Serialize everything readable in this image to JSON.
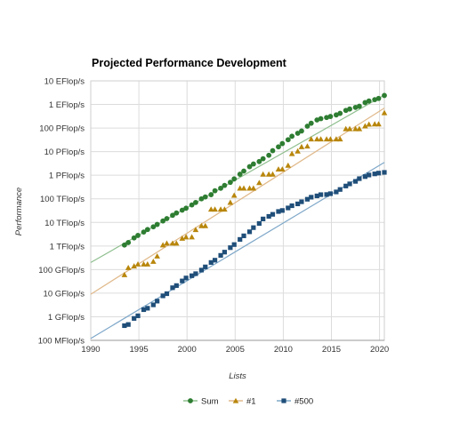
{
  "chart_data": {
    "type": "scatter",
    "title": "Projected Performance Development",
    "xlabel": "Lists",
    "ylabel": "Performance",
    "xlim": [
      1990,
      2020.5
    ],
    "log_scale_y": true,
    "ylim_label": [
      "100 MFlop/s",
      "10 EFlop/s"
    ],
    "y_ticks": [
      {
        "gflops": 0.1,
        "label": "100 MFlop/s"
      },
      {
        "gflops": 1,
        "label": "1 GFlop/s"
      },
      {
        "gflops": 10,
        "label": "10 GFlop/s"
      },
      {
        "gflops": 100,
        "label": "100 GFlop/s"
      },
      {
        "gflops": 1000,
        "label": "1 TFlop/s"
      },
      {
        "gflops": 10000,
        "label": "10 TFlop/s"
      },
      {
        "gflops": 100000,
        "label": "100 TFlop/s"
      },
      {
        "gflops": 1000000,
        "label": "1 PFlop/s"
      },
      {
        "gflops": 10000000,
        "label": "10 PFlop/s"
      },
      {
        "gflops": 100000000,
        "label": "100 PFlop/s"
      },
      {
        "gflops": 1000000000,
        "label": "1 EFlop/s"
      },
      {
        "gflops": 10000000000,
        "label": "10 EFlop/s"
      }
    ],
    "x_ticks": [
      "1990",
      "1995",
      "2000",
      "2005",
      "2010",
      "2015",
      "2020"
    ],
    "y_unit": "GFlop/s",
    "grid": true,
    "legend_position": "bottom-center",
    "series": [
      {
        "name": "Sum",
        "color": "#2e7d32",
        "marker": "circle",
        "trend_color": "#8fbf8f",
        "trend": [
          [
            1990,
            200
          ],
          [
            2020.5,
            2500000000
          ]
        ],
        "x": [
          1993.5,
          1993.9,
          1994.5,
          1994.9,
          1995.5,
          1995.9,
          1996.5,
          1996.9,
          1997.5,
          1997.9,
          1998.5,
          1998.9,
          1999.5,
          1999.9,
          2000.5,
          2000.9,
          2001.5,
          2001.9,
          2002.5,
          2002.9,
          2003.5,
          2003.9,
          2004.5,
          2004.9,
          2005.5,
          2005.9,
          2006.5,
          2006.9,
          2007.5,
          2007.9,
          2008.5,
          2008.9,
          2009.5,
          2009.9,
          2010.5,
          2010.9,
          2011.5,
          2011.9,
          2012.5,
          2012.9,
          2013.5,
          2013.9,
          2014.5,
          2014.9,
          2015.5,
          2015.9,
          2016.5,
          2016.9,
          2017.5,
          2017.9,
          2018.5,
          2018.9,
          2019.5,
          2019.9,
          2020.5
        ],
        "values": [
          1100,
          1400,
          2200,
          2800,
          3900,
          5000,
          6500,
          8200,
          11500,
          14500,
          20000,
          25000,
          33000,
          40000,
          55000,
          70000,
          100000,
          120000,
          150000,
          220000,
          280000,
          370000,
          500000,
          700000,
          1100000,
          1500000,
          2300000,
          3000000,
          3800000,
          5000000,
          7000000,
          11000000,
          16000000,
          22000000,
          32000000,
          45000000,
          60000000,
          75000000,
          120000000,
          160000000,
          220000000,
          250000000,
          280000000,
          310000000,
          360000000,
          420000000,
          560000000,
          640000000,
          750000000,
          840000000,
          1200000000,
          1400000000,
          1600000000,
          1800000000,
          2400000000
        ]
      },
      {
        "name": "#1",
        "color": "#b8860b",
        "marker": "triangle",
        "trend_color": "#e0b98a",
        "trend": [
          [
            1990,
            9
          ],
          [
            2020.5,
            700000000
          ]
        ],
        "x": [
          1993.5,
          1993.9,
          1994.5,
          1994.9,
          1995.5,
          1995.9,
          1996.5,
          1996.9,
          1997.5,
          1997.9,
          1998.5,
          1998.9,
          1999.5,
          1999.9,
          2000.5,
          2000.9,
          2001.5,
          2001.9,
          2002.5,
          2002.9,
          2003.5,
          2003.9,
          2004.5,
          2004.9,
          2005.5,
          2005.9,
          2006.5,
          2006.9,
          2007.5,
          2007.9,
          2008.5,
          2008.9,
          2009.5,
          2009.9,
          2010.5,
          2010.9,
          2011.5,
          2011.9,
          2012.5,
          2012.9,
          2013.5,
          2013.9,
          2014.5,
          2014.9,
          2015.5,
          2015.9,
          2016.5,
          2016.9,
          2017.5,
          2017.9,
          2018.5,
          2018.9,
          2019.5,
          2019.9,
          2020.5
        ],
        "values": [
          60,
          120,
          140,
          170,
          170,
          170,
          220,
          370,
          1100,
          1300,
          1300,
          1300,
          2100,
          2400,
          2400,
          4900,
          7200,
          7200,
          36000,
          36000,
          36000,
          36000,
          70000,
          140000,
          280000,
          280000,
          280000,
          280000,
          480000,
          1100000,
          1100000,
          1100000,
          1800000,
          1800000,
          2600000,
          8200000,
          10500000,
          16000000,
          17000000,
          34000000,
          34000000,
          34000000,
          34000000,
          34000000,
          34000000,
          34000000,
          93000000,
          93000000,
          93000000,
          93000000,
          122000000,
          144000000,
          148000000,
          148000000,
          442000000
        ]
      },
      {
        "name": "#500",
        "color": "#1f4e79",
        "marker": "square",
        "trend_color": "#7fa8c9",
        "trend": [
          [
            1990,
            0.12
          ],
          [
            2020.5,
            3500000
          ]
        ],
        "x": [
          1993.5,
          1993.9,
          1994.5,
          1994.9,
          1995.5,
          1995.9,
          1996.5,
          1996.9,
          1997.5,
          1997.9,
          1998.5,
          1998.9,
          1999.5,
          1999.9,
          2000.5,
          2000.9,
          2001.5,
          2001.9,
          2002.5,
          2002.9,
          2003.5,
          2003.9,
          2004.5,
          2004.9,
          2005.5,
          2005.9,
          2006.5,
          2006.9,
          2007.5,
          2007.9,
          2008.5,
          2008.9,
          2009.5,
          2009.9,
          2010.5,
          2010.9,
          2011.5,
          2011.9,
          2012.5,
          2012.9,
          2013.5,
          2013.9,
          2014.5,
          2014.9,
          2015.5,
          2015.9,
          2016.5,
          2016.9,
          2017.5,
          2017.9,
          2018.5,
          2018.9,
          2019.5,
          2019.9,
          2020.5
        ],
        "values": [
          0.42,
          0.47,
          0.85,
          1.1,
          2.0,
          2.3,
          3.2,
          4.6,
          7.7,
          9.5,
          17,
          21,
          33,
          44,
          55,
          67,
          95,
          130,
          200,
          250,
          400,
          550,
          850,
          1150,
          1900,
          2700,
          4000,
          6000,
          9000,
          14000,
          18000,
          22000,
          29000,
          32000,
          41000,
          51000,
          61000,
          75000,
          96000,
          117000,
          133000,
          150000,
          152000,
          165000,
          196000,
          249000,
          349000,
          430000,
          549000,
          716000,
          875000,
          1020000,
          1140000,
          1230000,
          1320000
        ]
      }
    ]
  }
}
